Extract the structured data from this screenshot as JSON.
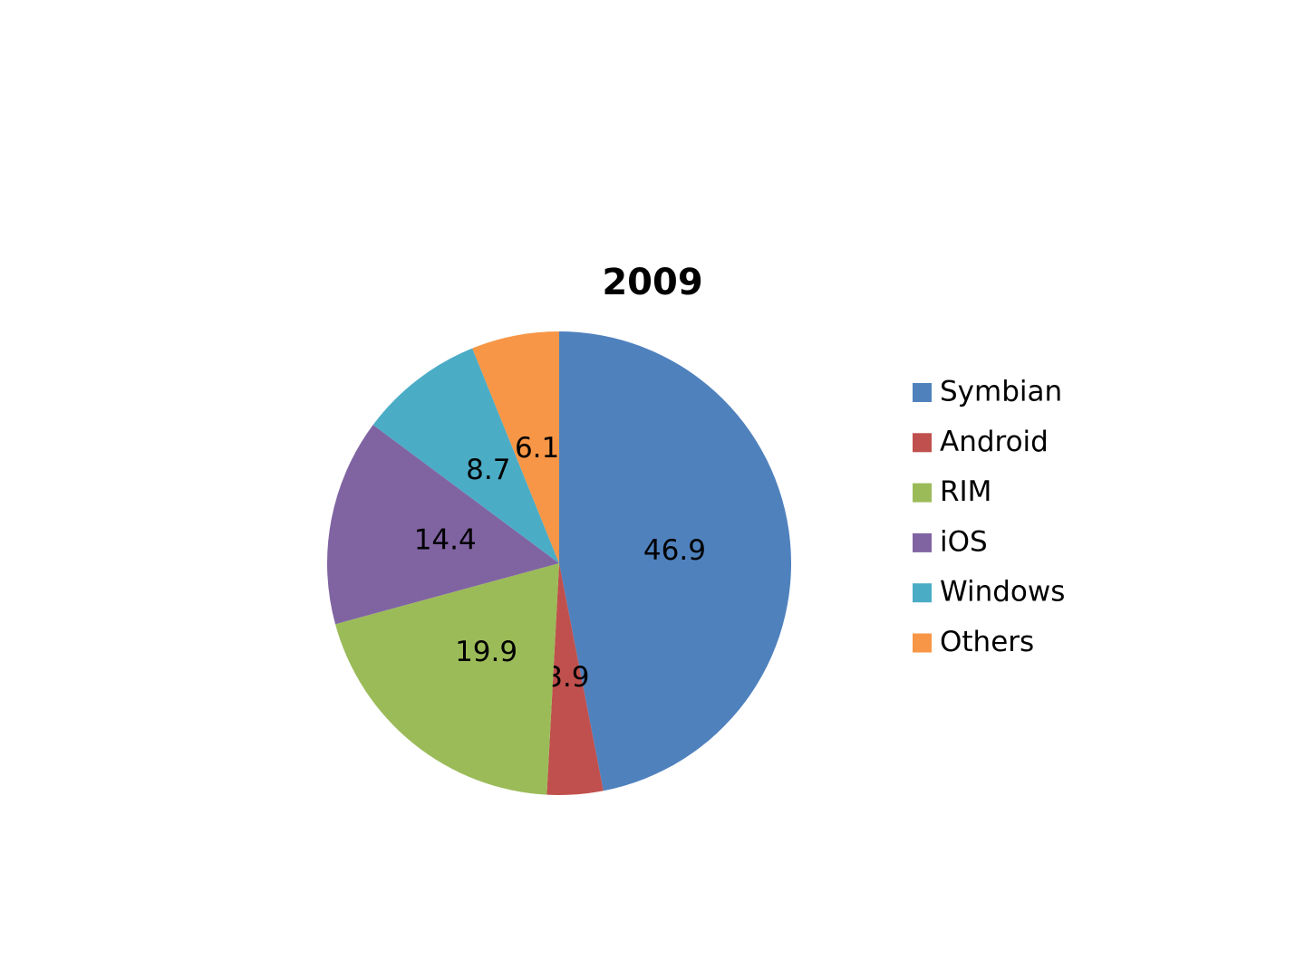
{
  "chart_data": {
    "type": "pie",
    "title": "2009",
    "categories": [
      "Symbian",
      "Android",
      "RIM",
      "iOS",
      "Windows",
      "Others"
    ],
    "values": [
      46.9,
      3.9,
      19.9,
      14.4,
      8.7,
      6.1
    ],
    "colors": [
      "#4f81bd",
      "#c0504d",
      "#9bbb59",
      "#8064a2",
      "#4bacc6",
      "#f79646"
    ],
    "legend": "right"
  }
}
